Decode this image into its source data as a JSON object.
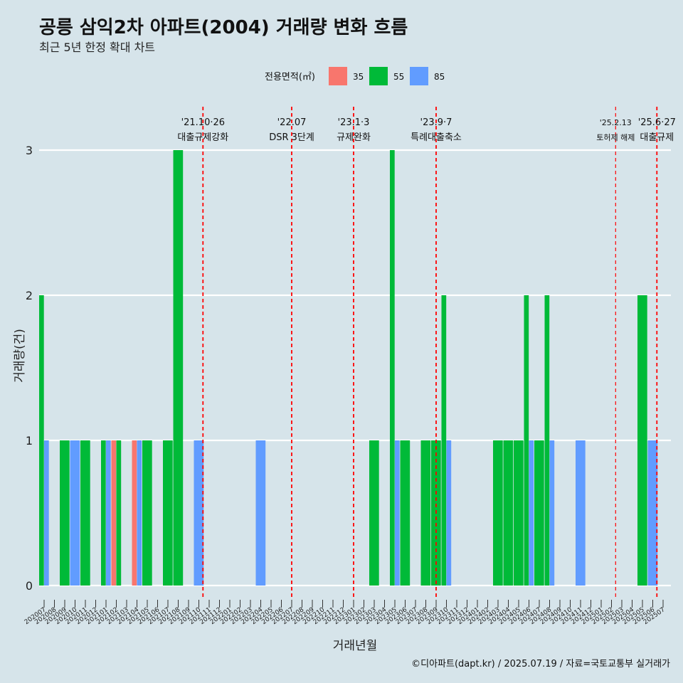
{
  "header": {
    "title": "공릉 삼익2차 아파트(2004) 거래량 변화 흐름",
    "subtitle": "최근 5년 한정 확대 차트"
  },
  "caption": "©디아파트(dapt.kr) / 2025.07.19 / 자료=국토교통부 실거래가",
  "colors": {
    "35": "#f8766d",
    "55": "#00ba38",
    "85": "#619cff",
    "event_line": "#ff0000",
    "background": "#d6e4ea",
    "grid": "#ffffff"
  },
  "chart_data": {
    "type": "bar",
    "title": "공릉 삼익2차 아파트(2004) 거래량 변화 흐름",
    "subtitle": "최근 5년 한정 확대 차트",
    "xlabel": "거래년월",
    "ylabel": "거래량(건)",
    "ylim": [
      0,
      3
    ],
    "yticks": [
      0,
      1,
      2,
      3
    ],
    "grid": true,
    "legend": {
      "title": "전용면적(㎡)",
      "position": "top",
      "entries": [
        "35",
        "55",
        "85"
      ]
    },
    "categories": [
      "202007",
      "202008",
      "202009",
      "202010",
      "202011",
      "202012",
      "202101",
      "202102",
      "202103",
      "202104",
      "202105",
      "202106",
      "202107",
      "202108",
      "202109",
      "202110",
      "202111",
      "202112",
      "202201",
      "202202",
      "202203",
      "202204",
      "202205",
      "202206",
      "202207",
      "202208",
      "202209",
      "202210",
      "202211",
      "202212",
      "202301",
      "202302",
      "202303",
      "202304",
      "202305",
      "202306",
      "202307",
      "202308",
      "202309",
      "202310",
      "202311",
      "202312",
      "202401",
      "202402",
      "202403",
      "202404",
      "202405",
      "202406",
      "202407",
      "202408",
      "202409",
      "202410",
      "202411",
      "202412",
      "202501",
      "202502",
      "202503",
      "202504",
      "202505",
      "202506",
      "202507"
    ],
    "series": [
      {
        "name": "35",
        "values": [
          0,
          0,
          0,
          0,
          0,
          0,
          0,
          1,
          0,
          1,
          0,
          0,
          0,
          0,
          0,
          0,
          0,
          0,
          0,
          0,
          0,
          0,
          0,
          0,
          0,
          0,
          0,
          0,
          0,
          0,
          0,
          0,
          0,
          0,
          0,
          0,
          0,
          0,
          0,
          0,
          0,
          0,
          0,
          0,
          0,
          0,
          0,
          0,
          0,
          0,
          0,
          0,
          0,
          0,
          0,
          0,
          0,
          0,
          0,
          0,
          0
        ]
      },
      {
        "name": "55",
        "values": [
          2,
          0,
          1,
          0,
          1,
          0,
          1,
          1,
          0,
          0,
          1,
          0,
          1,
          3,
          0,
          0,
          0,
          0,
          0,
          0,
          0,
          0,
          0,
          0,
          0,
          0,
          0,
          0,
          0,
          0,
          0,
          0,
          1,
          0,
          3,
          1,
          0,
          1,
          1,
          2,
          0,
          0,
          0,
          0,
          1,
          1,
          1,
          2,
          1,
          2,
          0,
          0,
          0,
          0,
          0,
          0,
          0,
          0,
          2,
          0,
          0
        ]
      },
      {
        "name": "85",
        "values": [
          1,
          0,
          0,
          1,
          0,
          0,
          1,
          0,
          0,
          1,
          0,
          0,
          0,
          0,
          0,
          1,
          0,
          0,
          0,
          0,
          0,
          1,
          0,
          0,
          0,
          0,
          0,
          0,
          0,
          0,
          0,
          0,
          0,
          0,
          1,
          0,
          0,
          0,
          0,
          1,
          0,
          0,
          0,
          0,
          0,
          0,
          0,
          1,
          0,
          1,
          0,
          0,
          1,
          0,
          0,
          0,
          0,
          0,
          0,
          1,
          0
        ]
      }
    ],
    "events": [
      {
        "date_label": "'21.10·26",
        "text": "대출규제강화",
        "at": "202110",
        "offset": 0.4,
        "style": "bold"
      },
      {
        "date_label": "'22.07",
        "text": "DSR 3단계",
        "at": "202207",
        "offset": 0.0,
        "style": "bold"
      },
      {
        "date_label": "'23.1·3",
        "text": "규제완화",
        "at": "202301",
        "offset": 0.0,
        "style": "bold"
      },
      {
        "date_label": "'23.9·7",
        "text": "특례대출축소",
        "at": "202309",
        "offset": 0.0,
        "style": "bold"
      },
      {
        "date_label": "'25.2.13",
        "text": "토허제 해제",
        "at": "202502",
        "offset": 0.4,
        "style": "thin"
      },
      {
        "date_label": "'25.6·27",
        "text": "대출규제",
        "at": "202506",
        "offset": 0.4,
        "style": "bold"
      }
    ]
  }
}
